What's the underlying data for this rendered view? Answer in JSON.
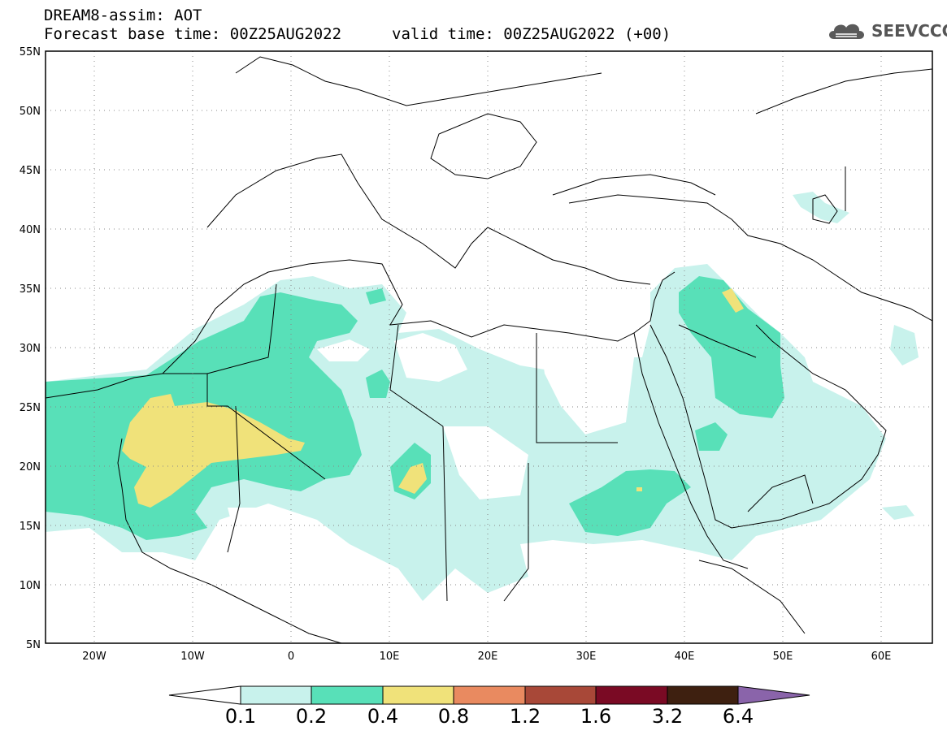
{
  "header": {
    "line1": "DREAM8-assim: AOT",
    "line2": "Forecast base time: 00Z25AUG2022",
    "valid": "valid time: 00Z25AUG2022 (+00)"
  },
  "logo": {
    "text": "SEEVCCC",
    "icon": "cloud-icon"
  },
  "map": {
    "lon_range": [
      -25,
      65
    ],
    "lat_range": [
      5,
      55
    ],
    "lat_ticks": [
      "55N",
      "50N",
      "45N",
      "40N",
      "35N",
      "30N",
      "25N",
      "20N",
      "15N",
      "10N",
      "5N"
    ],
    "lon_ticks": [
      "20W",
      "10W",
      "0",
      "10E",
      "20E",
      "30E",
      "40E",
      "50E",
      "60E"
    ],
    "grid": "dotted"
  },
  "colorbar": {
    "labels": [
      "0.1",
      "0.2",
      "0.4",
      "0.8",
      "1.2",
      "1.6",
      "3.2",
      "6.4"
    ],
    "colors": [
      "#ffffff",
      "#c8f2ec",
      "#58e0b8",
      "#f0e27a",
      "#e98a60",
      "#a84838",
      "#7a0a24",
      "#3e2010",
      "#8a64aa"
    ]
  }
}
